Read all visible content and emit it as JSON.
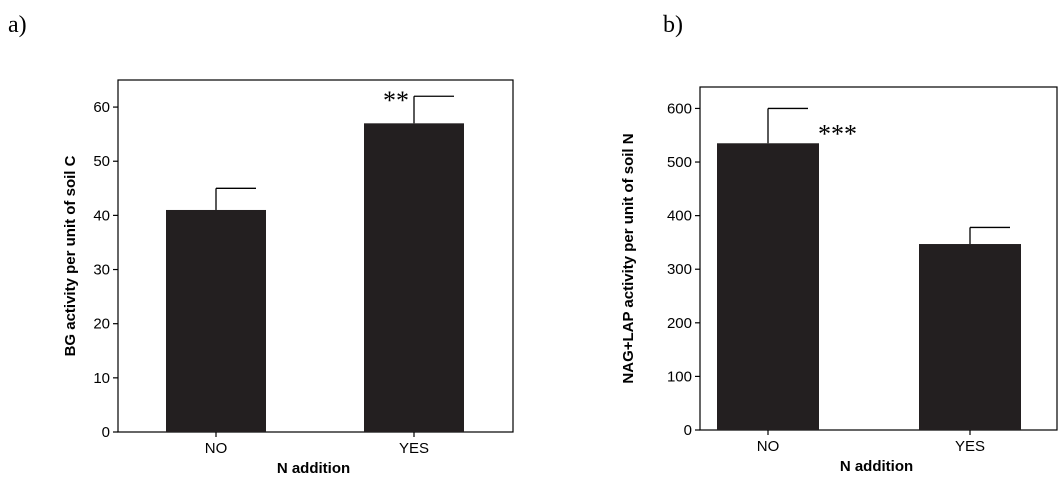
{
  "panels": [
    {
      "letter": "a)"
    },
    {
      "letter": "b)"
    }
  ],
  "colors": {
    "bar": "#231f20",
    "axis": "#000000"
  },
  "chart_data": [
    {
      "type": "bar",
      "title": "",
      "xlabel": "N addition",
      "ylabel": "BG activity per unit of soil C",
      "categories": [
        "NO",
        "YES"
      ],
      "values": [
        41,
        57
      ],
      "error_upper": [
        45,
        62
      ],
      "annotations": [
        {
          "category": "YES",
          "text": "**"
        }
      ],
      "ylim": [
        0,
        65
      ],
      "yticks": [
        0,
        10,
        20,
        30,
        40,
        50,
        60
      ],
      "grid": false
    },
    {
      "type": "bar",
      "title": "",
      "xlabel": "N addition",
      "ylabel": "NAG+LAP activity per unit of soil N",
      "categories": [
        "NO",
        "YES"
      ],
      "values": [
        535,
        347
      ],
      "error_upper": [
        600,
        378
      ],
      "annotations": [
        {
          "category": "NO",
          "text": "***"
        }
      ],
      "ylim": [
        0,
        640
      ],
      "yticks": [
        0,
        100,
        200,
        300,
        400,
        500,
        600
      ],
      "grid": false
    }
  ]
}
